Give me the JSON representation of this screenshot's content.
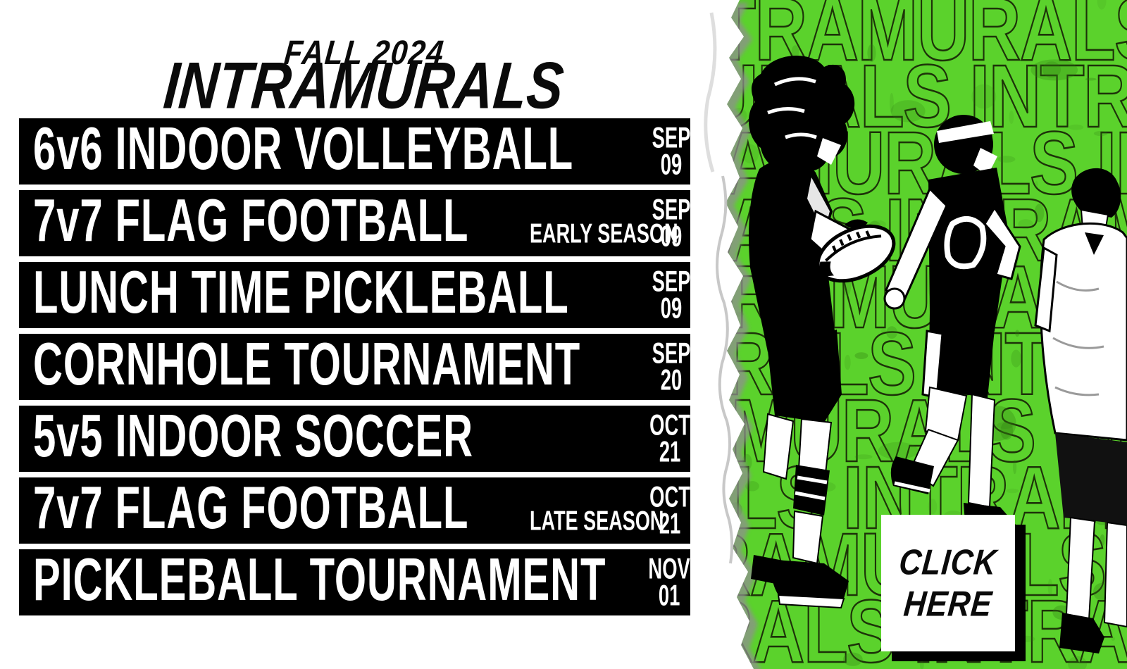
{
  "header": {
    "season": "FALL 2024",
    "title": "INTRAMURALS"
  },
  "events": [
    {
      "name": "6v6 INDOOR VOLLEYBALL",
      "sub": "",
      "month": "SEP",
      "day": "09"
    },
    {
      "name": "7v7 FLAG FOOTBALL",
      "sub": "EARLY SEASON",
      "month": "SEP",
      "day": "09"
    },
    {
      "name": "LUNCH TIME PICKLEBALL",
      "sub": "",
      "month": "SEP",
      "day": "09"
    },
    {
      "name": "CORNHOLE TOURNAMENT",
      "sub": "",
      "month": "SEP",
      "day": "20"
    },
    {
      "name": "5v5 INDOOR SOCCER",
      "sub": "",
      "month": "OCT",
      "day": "21"
    },
    {
      "name": "7v7 FLAG FOOTBALL",
      "sub": "LATE SEASON",
      "month": "OCT",
      "day": "21"
    },
    {
      "name": "PICKLEBALL TOURNAMENT",
      "sub": "",
      "month": "NOV",
      "day": "01"
    }
  ],
  "cta": {
    "line1": "CLICK",
    "line2": "HERE"
  },
  "pattern": {
    "text": "INTRAMURALS",
    "row_text": "INTRAMURALS INTRAMURALS"
  },
  "colors": {
    "background_green": "#5bd22c",
    "bar_black": "#000000",
    "pattern_outline": "#1d3309",
    "cta_white": "#ffffff"
  }
}
